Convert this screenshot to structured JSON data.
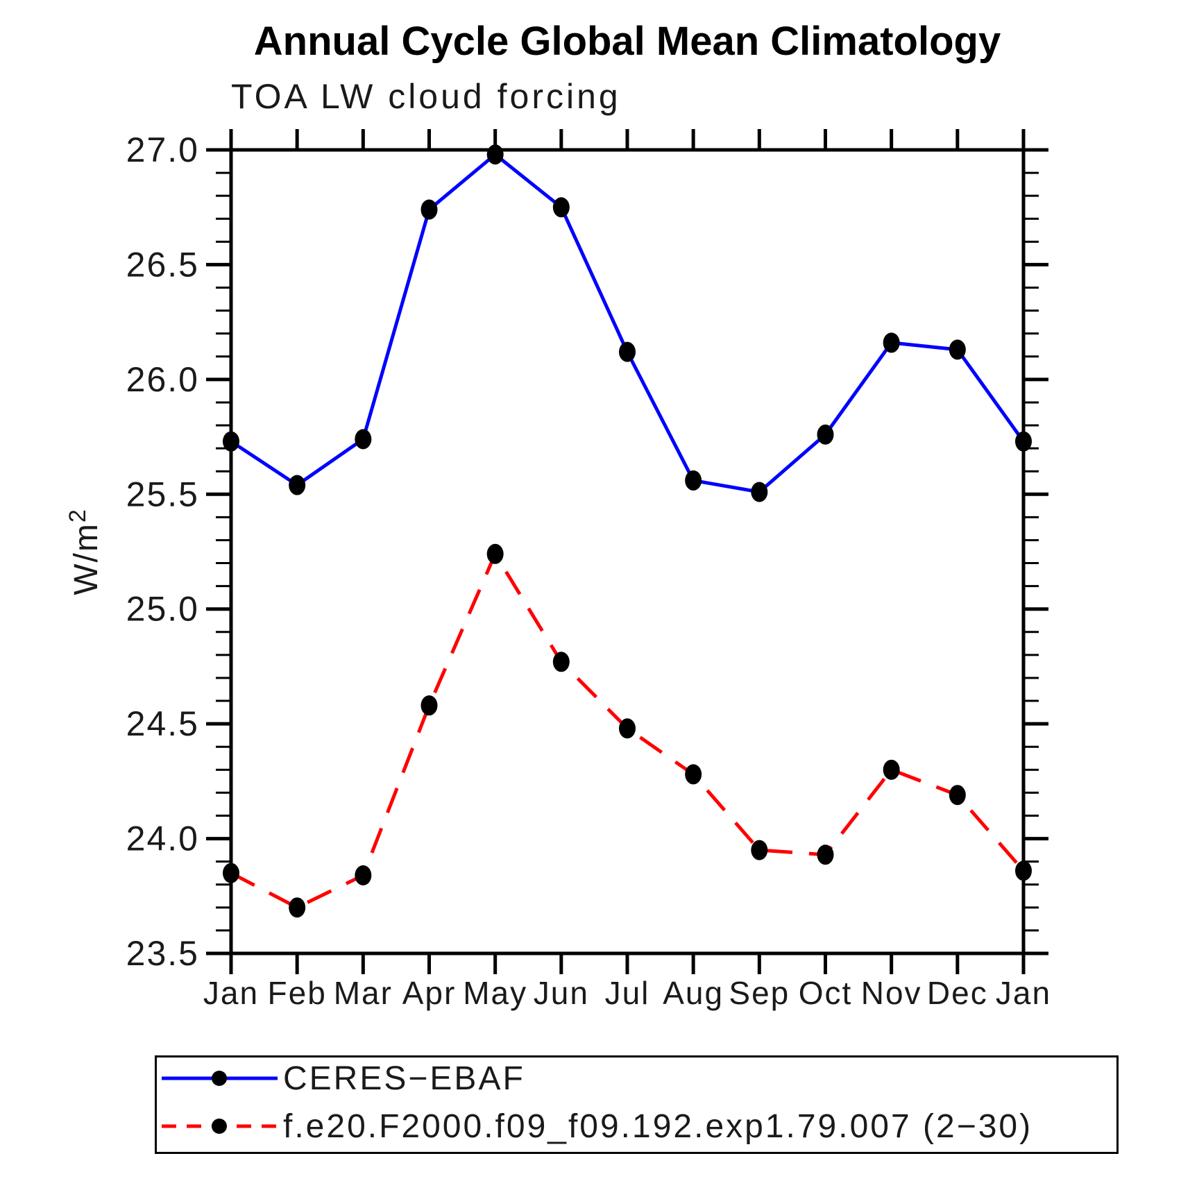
{
  "chart": {
    "title": "Annual Cycle Global Mean Climatology",
    "subtitle": "TOA LW cloud forcing",
    "ylabel_base": "W/m",
    "ylabel_sup": "2"
  },
  "chart_data": {
    "type": "line",
    "title": "Annual Cycle Global Mean Climatology",
    "subtitle": "TOA LW cloud forcing",
    "xlabel": "",
    "ylabel": "W/m^2",
    "categories": [
      "Jan",
      "Feb",
      "Mar",
      "Apr",
      "May",
      "Jun",
      "Jul",
      "Aug",
      "Sep",
      "Oct",
      "Nov",
      "Dec",
      "Jan"
    ],
    "series": [
      {
        "name": "CERES−EBAF",
        "color": "#0000ff",
        "line_style": "solid",
        "marker": "filled-circle",
        "marker_color": "#000000",
        "values": [
          25.73,
          25.54,
          25.74,
          26.74,
          26.98,
          26.75,
          26.12,
          25.56,
          25.51,
          25.76,
          26.16,
          26.13,
          25.73
        ]
      },
      {
        "name": "f.e20.F2000.f09_f09.192.exp1.79.007 (2−30)",
        "color": "#ff0000",
        "line_style": "dashed",
        "marker": "filled-circle",
        "marker_color": "#000000",
        "values": [
          23.85,
          23.7,
          23.84,
          24.58,
          25.24,
          24.77,
          24.48,
          24.28,
          23.95,
          23.93,
          24.3,
          24.19,
          23.86
        ]
      }
    ],
    "ylim": [
      23.5,
      27.0
    ],
    "y_major_ticks": [
      23.5,
      24.0,
      24.5,
      25.0,
      25.5,
      26.0,
      26.5,
      27.0
    ],
    "y_tick_labels": [
      "23.5",
      "24.0",
      "24.5",
      "25.0",
      "25.5",
      "26.0",
      "26.5",
      "27.0"
    ],
    "y_minor_step": 0.1,
    "grid": false,
    "legend_position": "bottom-left-box",
    "axis_color": "#000000"
  }
}
